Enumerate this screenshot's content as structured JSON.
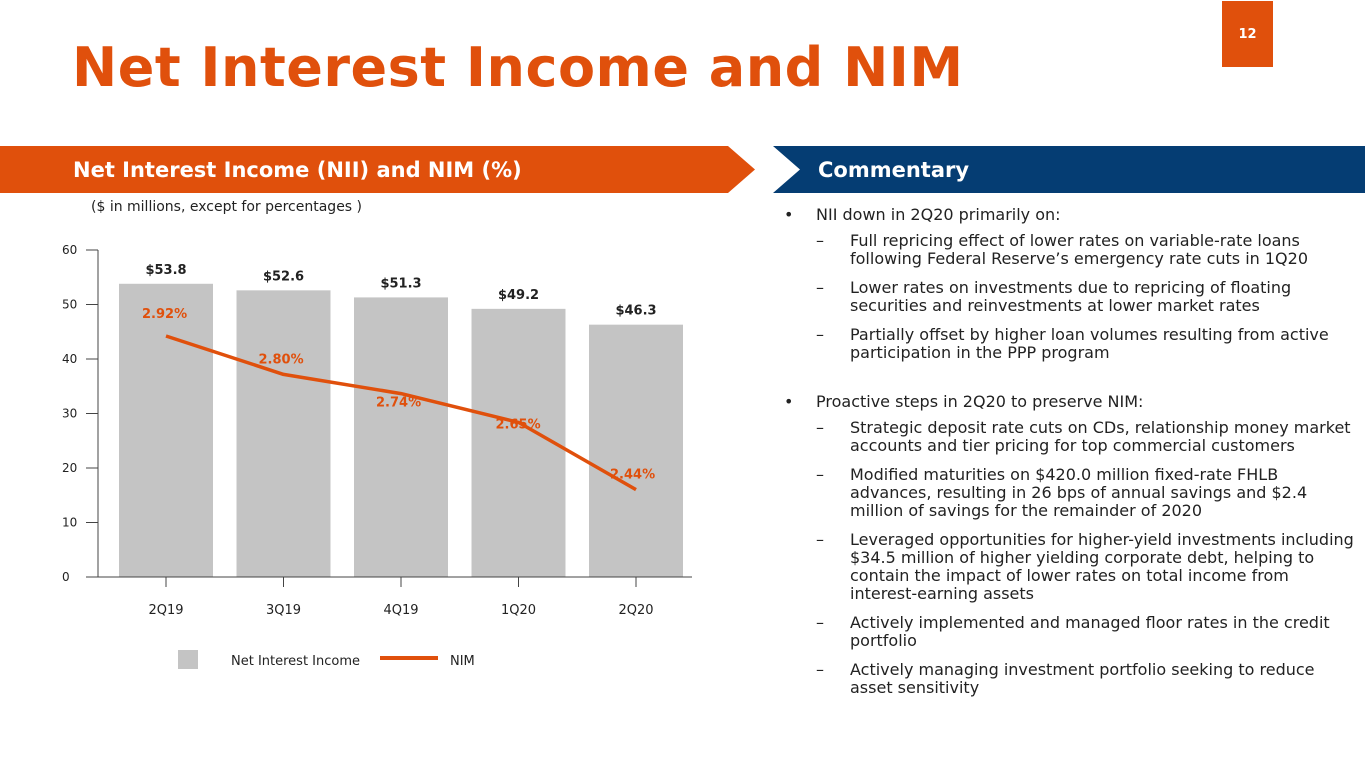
{
  "page_number": "12",
  "title": "Net Interest Income and NIM",
  "left_panel": {
    "heading": "Net Interest Income (NII) and NIM (%)"
  },
  "right_panel": {
    "heading": "Commentary"
  },
  "colors": {
    "accent": "#e0500c",
    "navy": "#053d73",
    "bar": "#c4c4c4"
  },
  "chart_data": {
    "type": "bar",
    "subtitle": "($ in millions, except for percentages )",
    "categories": [
      "2Q19",
      "3Q19",
      "4Q19",
      "1Q20",
      "2Q20"
    ],
    "yticks": [
      "0",
      "10",
      "20",
      "30",
      "40",
      "50",
      "60"
    ],
    "ylim": [
      0,
      60
    ],
    "series": [
      {
        "name": "Net Interest Income",
        "type": "bar",
        "values": [
          53.8,
          52.6,
          51.3,
          49.2,
          46.3
        ],
        "labels": [
          "$53.8",
          "$52.6",
          "$51.3",
          "$49.2",
          "$46.3"
        ]
      },
      {
        "name": "NIM",
        "type": "line",
        "values": [
          2.92,
          2.8,
          2.74,
          2.65,
          2.44
        ],
        "labels": [
          "2.92%",
          "2.80%",
          "2.74%",
          "2.65%",
          "2.44%"
        ]
      }
    ],
    "legend": [
      "Net Interest Income",
      "NIM"
    ]
  },
  "commentary": {
    "bullets": [
      {
        "text": "NII down in 2Q20 primarily on:",
        "subs": [
          "Full repricing effect of lower rates on variable-rate loans following Federal Reserve’s emergency rate cuts in 1Q20",
          "Lower rates on investments due to repricing of floating securities and reinvestments at lower market rates",
          "Partially offset by higher loan volumes resulting from active participation in the PPP program"
        ]
      },
      {
        "text": "Proactive steps in 2Q20 to preserve NIM:",
        "subs": [
          "Strategic deposit rate cuts on CDs, relationship money market accounts and tier pricing for top commercial customers",
          "Modified maturities on $420.0 million fixed-rate FHLB advances, resulting in 26 bps of annual savings and $2.4 million of savings for the remainder of 2020",
          "Leveraged opportunities for higher-yield investments including $34.5 million of higher yielding corporate debt, helping to contain the impact of lower rates on total income from interest-earning assets",
          "Actively implemented and managed floor rates in the credit portfolio",
          "Actively managing investment portfolio seeking  to reduce asset sensitivity"
        ]
      }
    ]
  }
}
